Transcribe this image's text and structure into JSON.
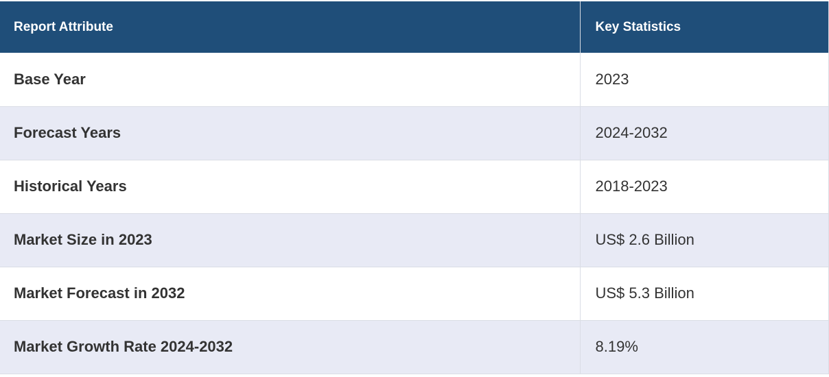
{
  "table": {
    "headers": [
      "Report Attribute",
      "Key Statistics"
    ],
    "rows": [
      [
        "Base Year",
        "2023"
      ],
      [
        "Forecast Years",
        "2024-2032"
      ],
      [
        "Historical Years",
        "2018-2023"
      ],
      [
        "Market Size in 2023",
        "US$ 2.6 Billion"
      ],
      [
        "Market Forecast in 2032",
        "US$ 5.3 Billion"
      ],
      [
        "Market Growth Rate 2024-2032",
        "8.19%"
      ]
    ]
  },
  "colors": {
    "header_bg": "#1f4e79",
    "header_text": "#ffffff",
    "row_alt_bg": "#e8eaf5",
    "row_bg": "#ffffff",
    "body_text": "#333333"
  }
}
